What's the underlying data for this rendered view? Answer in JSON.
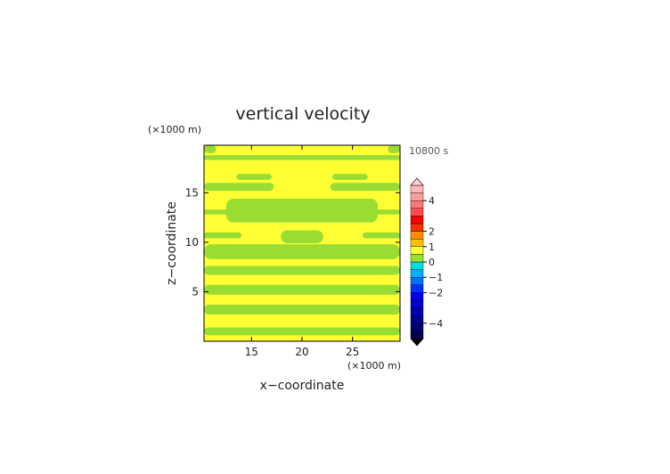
{
  "chart_data": {
    "type": "heatmap",
    "title": "vertical velocity",
    "time_label": "10800 s",
    "xlabel": "x−coordinate",
    "ylabel": "z−coordinate",
    "x_unit": "(×1000 m)",
    "y_unit": "(×1000 m)",
    "xlim": [
      10.3,
      29.7
    ],
    "ylim": [
      0,
      19.8
    ],
    "x_ticks": [
      15,
      20,
      25
    ],
    "y_ticks": [
      5,
      10,
      15
    ],
    "colors": {
      "near_zero_positive": "#ffff33",
      "near_zero_negative": "#99dd33",
      "frame": "#000000"
    },
    "colorbar": {
      "levels": [
        -5,
        -4.5,
        -4,
        -3.5,
        -3,
        -2.5,
        -2,
        -1.5,
        -1,
        -0.5,
        0,
        0.5,
        1,
        1.5,
        2,
        2.5,
        3,
        3.5,
        4,
        4.5,
        5
      ],
      "colors": [
        "#000050",
        "#000070",
        "#000090",
        "#0000b0",
        "#0000d0",
        "#0000f0",
        "#0030ff",
        "#0070ff",
        "#00b0ff",
        "#00e0e0",
        "#99dd33",
        "#ffff33",
        "#ffc000",
        "#ff8c00",
        "#ff3000",
        "#ff0000",
        "#ff4d4d",
        "#ff7878",
        "#ff9c9c",
        "#ffb8b8"
      ],
      "tick_labels": [
        "4",
        "2",
        "1",
        "0",
        "−1",
        "−2",
        "−4"
      ],
      "tick_values": [
        4,
        2,
        1,
        0,
        -1,
        -2,
        -4
      ],
      "extend": "both"
    },
    "regions": [
      {
        "sign": "positive",
        "x": [
          10.3,
          29.7
        ],
        "z": [
          0,
          19.8
        ]
      },
      {
        "sign": "negative",
        "x": [
          10.3,
          29.7
        ],
        "z": [
          0.6,
          1.4
        ]
      },
      {
        "sign": "negative",
        "x": [
          10.3,
          29.7
        ],
        "z": [
          2.7,
          3.7
        ]
      },
      {
        "sign": "negative",
        "x": [
          10.3,
          29.7
        ],
        "z": [
          4.7,
          5.7
        ]
      },
      {
        "sign": "negative",
        "x": [
          10.3,
          29.7
        ],
        "z": [
          6.7,
          7.6
        ]
      },
      {
        "sign": "negative",
        "x": [
          10.3,
          29.7
        ],
        "z": [
          8.3,
          9.8
        ]
      },
      {
        "sign": "negative",
        "x": [
          17.9,
          22.1
        ],
        "z": [
          9.9,
          11.2
        ]
      },
      {
        "sign": "negative",
        "x": [
          10.3,
          14.0
        ],
        "z": [
          10.4,
          11.0
        ]
      },
      {
        "sign": "negative",
        "x": [
          26.0,
          29.7
        ],
        "z": [
          10.4,
          11.0
        ]
      },
      {
        "sign": "negative",
        "x": [
          12.5,
          27.5
        ],
        "z": [
          12.0,
          14.4
        ]
      },
      {
        "sign": "negative",
        "x": [
          10.3,
          13.5
        ],
        "z": [
          12.8,
          13.3
        ]
      },
      {
        "sign": "negative",
        "x": [
          26.5,
          29.7
        ],
        "z": [
          12.8,
          13.3
        ]
      },
      {
        "sign": "negative",
        "x": [
          10.3,
          17.2
        ],
        "z": [
          15.2,
          16.0
        ]
      },
      {
        "sign": "negative",
        "x": [
          22.8,
          29.7
        ],
        "z": [
          15.2,
          16.0
        ]
      },
      {
        "sign": "negative",
        "x": [
          13.5,
          17.0
        ],
        "z": [
          16.3,
          16.9
        ]
      },
      {
        "sign": "negative",
        "x": [
          23.0,
          26.5
        ],
        "z": [
          16.3,
          16.9
        ]
      },
      {
        "sign": "negative",
        "x": [
          10.3,
          29.7
        ],
        "z": [
          18.3,
          18.8
        ]
      },
      {
        "sign": "negative",
        "x": [
          10.3,
          11.5
        ],
        "z": [
          19.0,
          19.8
        ]
      },
      {
        "sign": "negative",
        "x": [
          28.5,
          29.7
        ],
        "z": [
          19.0,
          19.8
        ]
      }
    ]
  }
}
